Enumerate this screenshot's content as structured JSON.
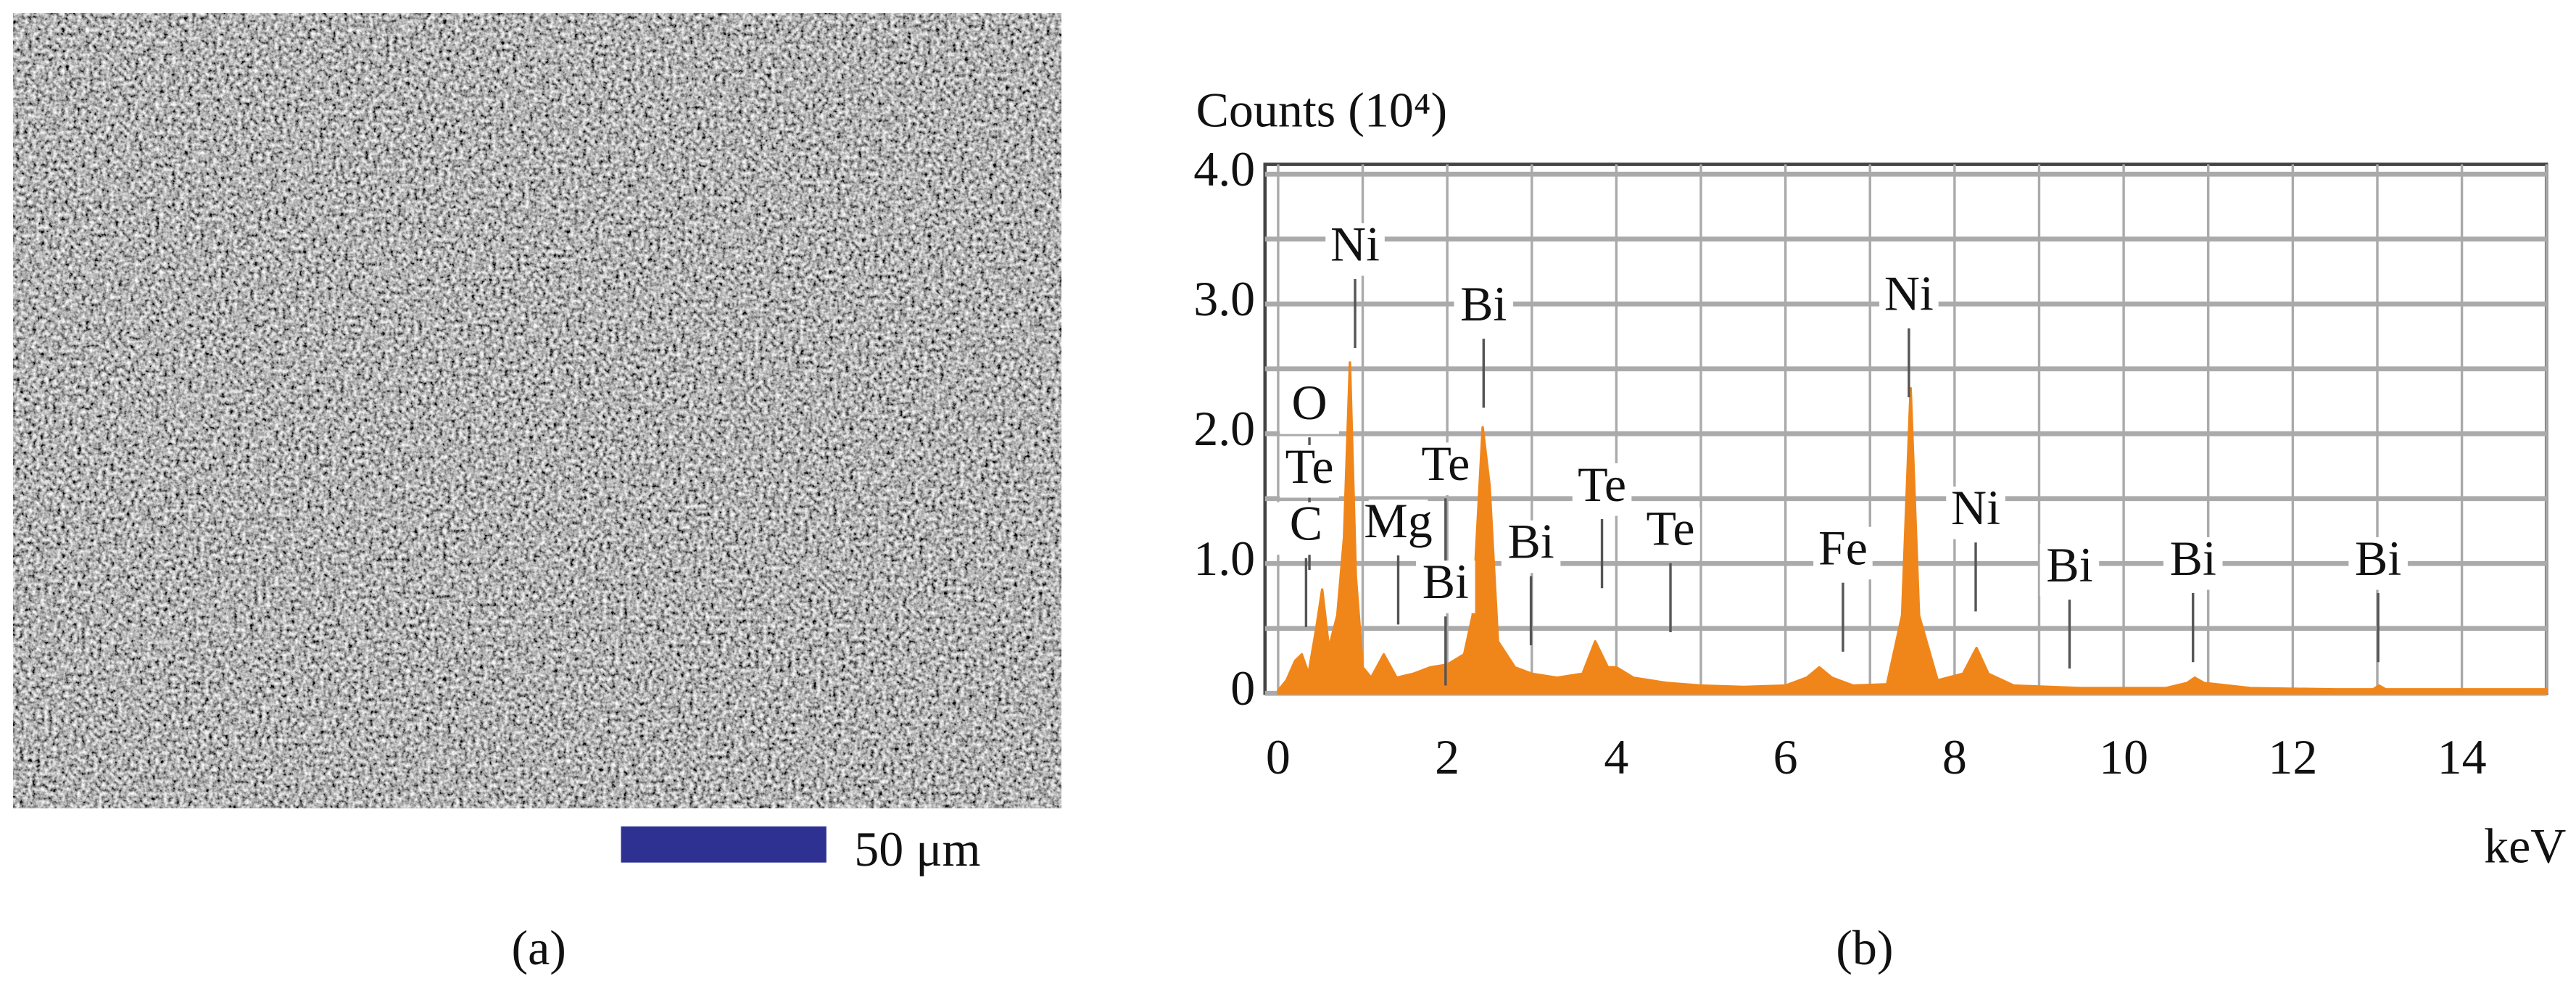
{
  "panel_a": {
    "scale_bar_label": "50 μm",
    "panel_label": "(a)"
  },
  "chart_data": {
    "type": "area",
    "panel_label": "(b)",
    "ylabel": "Counts (10⁴)",
    "xlabel": "keV",
    "color": "#f0861a",
    "grid": true,
    "xlim": [
      0,
      15
    ],
    "xticks": [
      0,
      2,
      4,
      6,
      8,
      10,
      12,
      14
    ],
    "minor_xticks": [
      1,
      3,
      5,
      7,
      9,
      11,
      13,
      15
    ],
    "ylim": [
      0,
      4
    ],
    "yticks": [
      0,
      {
        "value": 1,
        "label": "1.0"
      },
      {
        "value": 2,
        "label": "2.0"
      },
      {
        "value": 3,
        "label": "3.0"
      },
      {
        "value": 4,
        "label": "4.0"
      }
    ],
    "minor_yticks": [
      0.5,
      1.5,
      2.5,
      3.5
    ],
    "x": [
      0,
      0.1,
      0.2,
      0.28,
      0.36,
      0.45,
      0.52,
      0.6,
      0.7,
      0.78,
      0.85,
      0.92,
      1.0,
      1.1,
      1.25,
      1.4,
      1.6,
      1.8,
      2.0,
      2.2,
      2.3,
      2.42,
      2.5,
      2.6,
      2.8,
      3.0,
      3.3,
      3.6,
      3.75,
      3.9,
      4.0,
      4.2,
      4.6,
      5.0,
      5.5,
      6.0,
      6.25,
      6.4,
      6.55,
      6.8,
      7.2,
      7.38,
      7.48,
      7.58,
      7.8,
      8.1,
      8.26,
      8.4,
      8.7,
      9.5,
      10.5,
      10.75,
      10.84,
      10.95,
      11.5,
      12.5,
      12.95,
      13.02,
      13.1,
      14,
      15
    ],
    "values": [
      0.02,
      0.1,
      0.25,
      0.3,
      0.15,
      0.5,
      0.8,
      0.35,
      0.6,
      1.2,
      2.55,
      0.9,
      0.2,
      0.12,
      0.3,
      0.12,
      0.15,
      0.2,
      0.22,
      0.3,
      0.6,
      2.05,
      1.6,
      0.4,
      0.2,
      0.15,
      0.12,
      0.15,
      0.4,
      0.2,
      0.2,
      0.12,
      0.08,
      0.06,
      0.05,
      0.06,
      0.12,
      0.2,
      0.12,
      0.06,
      0.07,
      0.6,
      2.35,
      0.6,
      0.1,
      0.15,
      0.35,
      0.15,
      0.06,
      0.04,
      0.04,
      0.08,
      0.12,
      0.08,
      0.04,
      0.03,
      0.03,
      0.06,
      0.03,
      0.03,
      0.03
    ],
    "annotations": [
      {
        "text": "Ni",
        "x": 0.91,
        "y": 3.42
      },
      {
        "text": "O",
        "x": 0.37,
        "y": 2.2
      },
      {
        "text": "Te",
        "x": 0.37,
        "y": 1.71
      },
      {
        "text": "C",
        "x": 0.33,
        "y": 1.27
      },
      {
        "text": "Mg",
        "x": 1.42,
        "y": 1.29
      },
      {
        "text": "Te",
        "x": 1.98,
        "y": 1.73
      },
      {
        "text": "Bi",
        "x": 1.98,
        "y": 0.82
      },
      {
        "text": "Bi",
        "x": 2.43,
        "y": 2.96
      },
      {
        "text": "Bi",
        "x": 2.99,
        "y": 1.13
      },
      {
        "text": "Te",
        "x": 3.83,
        "y": 1.57
      },
      {
        "text": "Te",
        "x": 4.64,
        "y": 1.23
      },
      {
        "text": "Fe",
        "x": 6.68,
        "y": 1.08
      },
      {
        "text": "Ni",
        "x": 7.46,
        "y": 3.04
      },
      {
        "text": "Ni",
        "x": 8.25,
        "y": 1.39
      },
      {
        "text": "Bi",
        "x": 9.36,
        "y": 0.95
      },
      {
        "text": "Bi",
        "x": 10.82,
        "y": 1.0
      },
      {
        "text": "Bi",
        "x": 13.01,
        "y": 1.0
      }
    ]
  }
}
